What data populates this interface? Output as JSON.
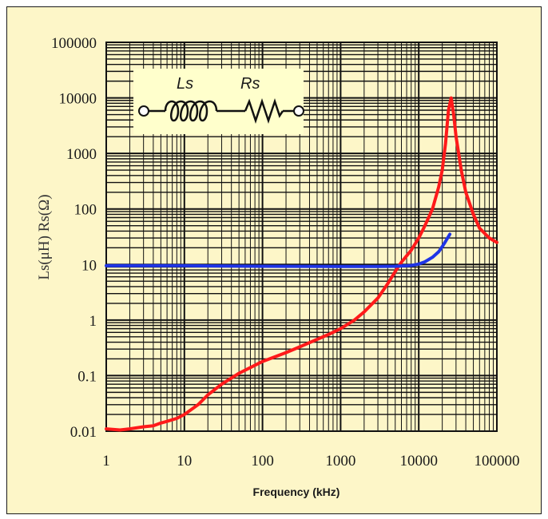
{
  "chart_data": {
    "type": "line",
    "title": "",
    "xlabel": "Frequency (kHz)",
    "ylabel": "Ls(μH) Rs(Ω)",
    "x_scale": "log",
    "y_scale": "log",
    "xlim": [
      1,
      100000
    ],
    "ylim": [
      0.01,
      100000
    ],
    "x_ticks": [
      "1",
      "10",
      "100",
      "1000",
      "10000",
      "100000"
    ],
    "y_ticks": [
      "100000",
      "10000",
      "1000",
      "100",
      "10",
      "1",
      "0.1",
      "0.01"
    ],
    "grid": true,
    "inset_labels": {
      "inductor": "Ls",
      "resistor": "Rs"
    },
    "colors": {
      "background": "#fdf6c8",
      "grid": "#111111",
      "inset": "#ffffcc",
      "red": "#ff1a1a",
      "blue": "#1f35e6"
    },
    "series": [
      {
        "color": "#ff1a1a",
        "x": [
          1,
          1.5,
          2,
          3,
          4,
          5,
          6,
          8,
          10,
          15,
          20,
          30,
          50,
          70,
          100,
          200,
          300,
          500,
          700,
          1000,
          1500,
          2000,
          3000,
          4000,
          5000,
          6000,
          8000,
          10000,
          12000,
          15000,
          18000,
          20000,
          22000,
          24000,
          26000,
          28000,
          30000,
          35000,
          40000,
          50000,
          60000,
          80000,
          100000
        ],
        "values": [
          0.011,
          0.0105,
          0.011,
          0.012,
          0.0125,
          0.014,
          0.015,
          0.017,
          0.02,
          0.03,
          0.045,
          0.07,
          0.11,
          0.14,
          0.18,
          0.26,
          0.33,
          0.45,
          0.55,
          0.7,
          1.0,
          1.4,
          2.5,
          4.5,
          7.5,
          11,
          18,
          30,
          50,
          100,
          250,
          500,
          1500,
          6000,
          10000,
          5000,
          2000,
          500,
          200,
          80,
          45,
          30,
          25
        ]
      },
      {
        "color": "#1f35e6",
        "x": [
          1,
          10,
          100,
          1000,
          3000,
          5000,
          8000,
          10000,
          12000,
          15000,
          18000,
          20000,
          22000,
          25000
        ],
        "values": [
          9.5,
          9.5,
          9.3,
          9.2,
          9.2,
          9.3,
          9.6,
          10.2,
          11.2,
          13.5,
          17,
          21,
          26,
          35
        ]
      }
    ]
  }
}
